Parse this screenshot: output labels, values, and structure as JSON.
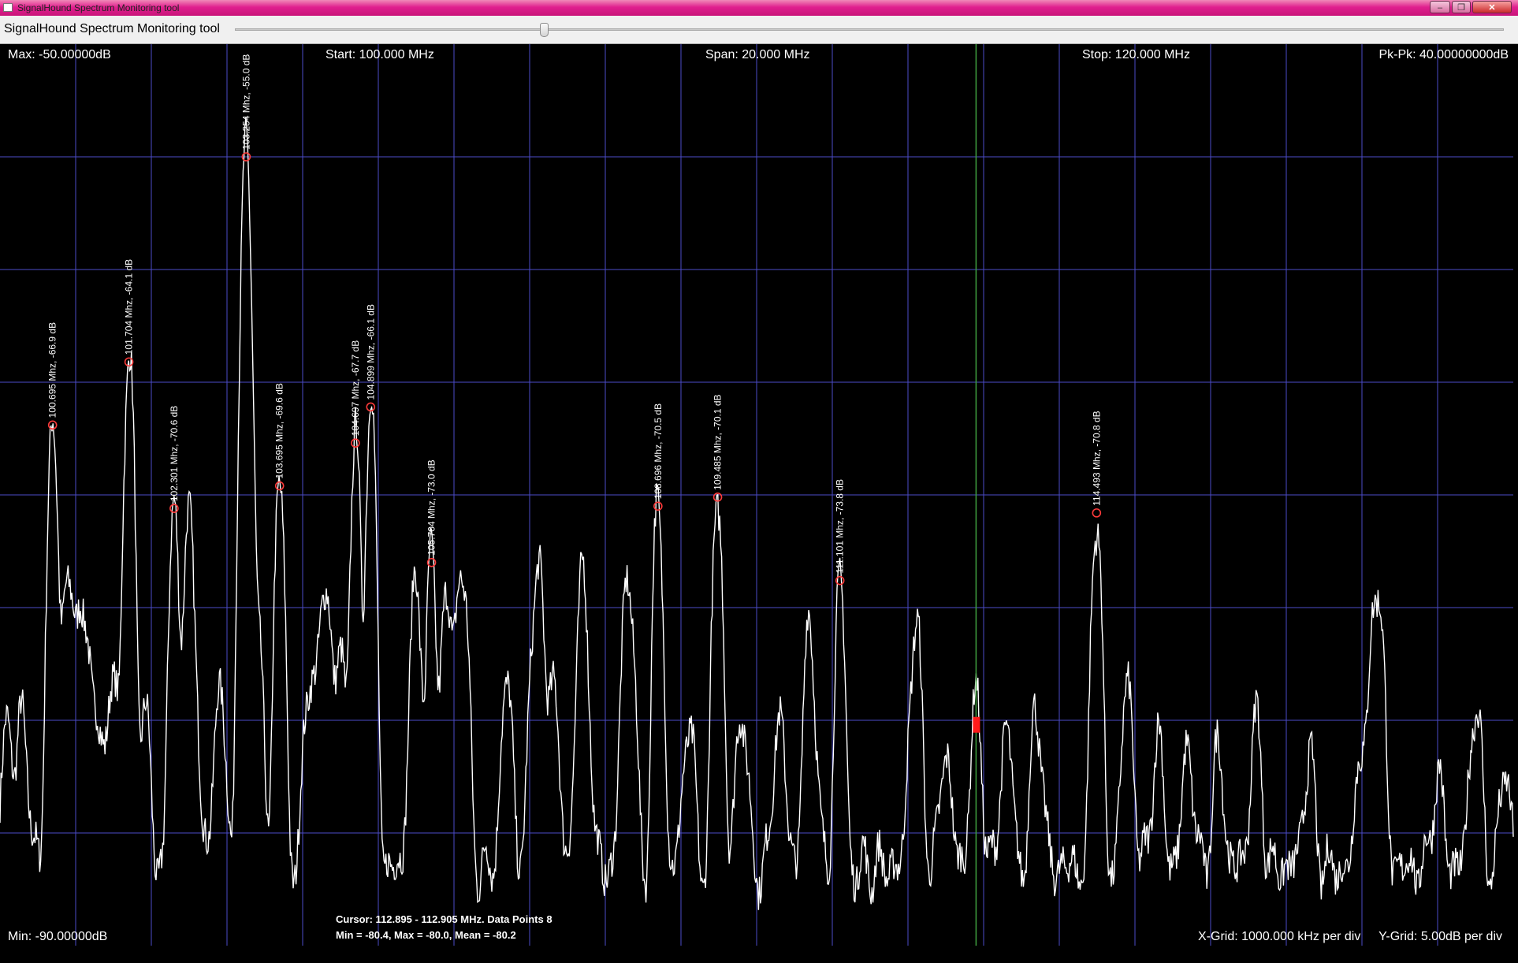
{
  "window": {
    "title": "SignalHound Spectrum Monitoring tool",
    "buttons": [
      "–",
      "❐",
      "✕"
    ]
  },
  "toolbar": {
    "label": "SignalHound Spectrum Monitoring tool",
    "slider_position": 0.24
  },
  "readouts": {
    "max": "Max: -50.00000dB",
    "start": "Start: 100.000 MHz",
    "span": "Span: 20.000 MHz",
    "stop": "Stop: 120.000 MHz",
    "pkpk": "Pk-Pk: 40.00000000dB",
    "min": "Min: -90.00000dB",
    "cursor_line1": "Cursor: 112.895 - 112.905 MHz. Data Points 8",
    "cursor_line2": "Min = -80.4, Max = -80.0, Mean = -80.2",
    "xgrid": "X-Grid: 1000.000 kHz per div",
    "ygrid": "Y-Grid: 5.00dB per div"
  },
  "colors": {
    "titlebar": "#e0208f",
    "grid": "#4b4bc8",
    "trace": "#ffffff",
    "peak_marker": "#ff3b3b",
    "cursor_line": "#3fa03f",
    "cursor_marker": "#ff1a1a"
  },
  "chart_data": {
    "type": "line",
    "title": "",
    "xlabel": "",
    "ylabel": "",
    "xlim": [
      100.0,
      120.0
    ],
    "ylim": [
      -90.0,
      -50.0
    ],
    "grid": true,
    "x_grid_step_mhz": 1.0,
    "y_grid_step_db": 5.0,
    "cursor_mhz": 112.9,
    "cursor_level_db": -80.2,
    "peaks": [
      {
        "freq": 100.695,
        "db": -66.9,
        "label": "100.695 Mhz, -66.9 dB"
      },
      {
        "freq": 101.704,
        "db": -64.1,
        "label": "101.704 Mhz, -64.1 dB"
      },
      {
        "freq": 102.301,
        "db": -70.6,
        "label": "102.301 Mhz, -70.6 dB"
      },
      {
        "freq": 103.254,
        "db": -55.0,
        "label": "103.254 Mhz, -55.0 dB"
      },
      {
        "freq": 103.695,
        "db": -69.6,
        "label": "103.695 Mhz, -69.6 dB"
      },
      {
        "freq": 104.697,
        "db": -67.7,
        "label": "104.697 Mhz, -67.7 dB"
      },
      {
        "freq": 104.899,
        "db": -66.1,
        "label": "104.899 Mhz, -66.1 dB"
      },
      {
        "freq": 105.704,
        "db": -73.0,
        "label": "105.704 Mhz, -73.0 dB"
      },
      {
        "freq": 108.696,
        "db": -70.5,
        "label": "108.696 Mhz, -70.5 dB"
      },
      {
        "freq": 109.485,
        "db": -70.1,
        "label": "109.485 Mhz, -70.1 dB"
      },
      {
        "freq": 111.101,
        "db": -73.8,
        "label": "111.101 Mhz, -73.8 dB"
      },
      {
        "freq": 114.493,
        "db": -70.8,
        "label": "114.493 Mhz, -70.8 dB"
      }
    ],
    "minor_peaks": [
      {
        "freq": 100.1,
        "db": -81.0
      },
      {
        "freq": 100.3,
        "db": -81.0
      },
      {
        "freq": 100.9,
        "db": -73.3
      },
      {
        "freq": 101.1,
        "db": -74.6
      },
      {
        "freq": 101.3,
        "db": -80.5
      },
      {
        "freq": 101.5,
        "db": -78.8
      },
      {
        "freq": 101.9,
        "db": -80.2
      },
      {
        "freq": 102.5,
        "db": -71.6
      },
      {
        "freq": 102.9,
        "db": -79.4
      },
      {
        "freq": 103.4,
        "db": -77.1
      },
      {
        "freq": 104.1,
        "db": -78.2
      },
      {
        "freq": 104.3,
        "db": -73.9
      },
      {
        "freq": 104.5,
        "db": -77.6
      },
      {
        "freq": 105.5,
        "db": -74.4
      },
      {
        "freq": 105.9,
        "db": -74.8
      },
      {
        "freq": 106.1,
        "db": -73.2
      },
      {
        "freq": 106.7,
        "db": -79.2
      },
      {
        "freq": 107.1,
        "db": -73.2
      },
      {
        "freq": 107.3,
        "db": -78.5
      },
      {
        "freq": 107.7,
        "db": -74.1
      },
      {
        "freq": 108.3,
        "db": -73.7
      },
      {
        "freq": 109.1,
        "db": -81.3
      },
      {
        "freq": 109.8,
        "db": -80.5
      },
      {
        "freq": 110.3,
        "db": -80.7
      },
      {
        "freq": 110.7,
        "db": -76.4
      },
      {
        "freq": 112.1,
        "db": -76.3
      },
      {
        "freq": 112.5,
        "db": -83.0
      },
      {
        "freq": 112.9,
        "db": -80.2
      },
      {
        "freq": 113.3,
        "db": -81.5
      },
      {
        "freq": 113.7,
        "db": -80.6
      },
      {
        "freq": 114.9,
        "db": -79.3
      },
      {
        "freq": 115.3,
        "db": -82.1
      },
      {
        "freq": 115.7,
        "db": -82.8
      },
      {
        "freq": 116.1,
        "db": -83.0
      },
      {
        "freq": 116.6,
        "db": -81.3
      },
      {
        "freq": 117.3,
        "db": -83.4
      },
      {
        "freq": 118.0,
        "db": -82.0
      },
      {
        "freq": 118.2,
        "db": -73.8
      },
      {
        "freq": 119.0,
        "db": -84.6
      },
      {
        "freq": 119.5,
        "db": -80.1
      },
      {
        "freq": 119.9,
        "db": -84.3
      }
    ]
  }
}
